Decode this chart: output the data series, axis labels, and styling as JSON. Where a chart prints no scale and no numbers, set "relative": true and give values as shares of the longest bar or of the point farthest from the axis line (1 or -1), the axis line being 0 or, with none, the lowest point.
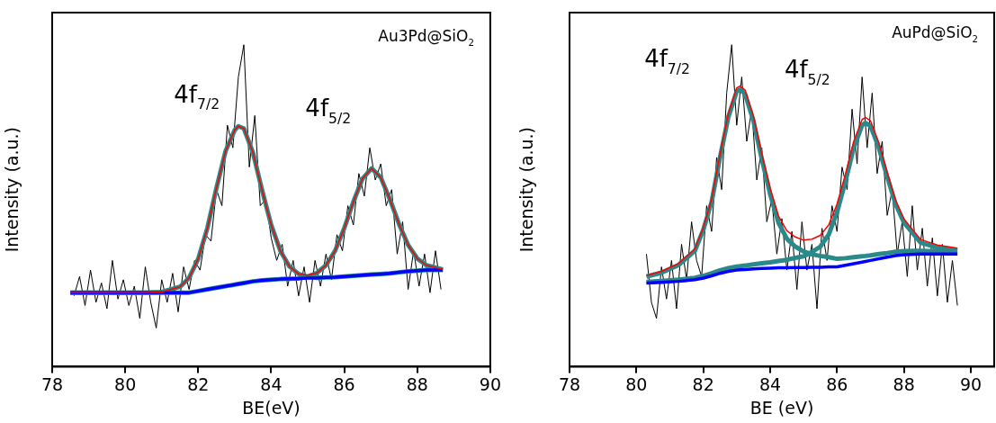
{
  "chart_data": [
    {
      "type": "line",
      "relative": true,
      "xlabel": "BE(eV)",
      "ylabel": "Intensity (a.u.)",
      "xlim": [
        78,
        90
      ],
      "xticks": [
        78,
        80,
        82,
        84,
        86,
        88,
        90
      ],
      "legend": false,
      "grid": false,
      "annotations": [
        "Au3Pd@SiO$_{2}$",
        "4f$_{7/2}$",
        "4f$_{5/2}$"
      ],
      "series": [
        {
          "color": "#000000",
          "x": [
            78.6,
            78.75,
            78.9,
            79.05,
            79.2,
            79.35,
            79.5,
            79.65,
            79.8,
            79.95,
            80.1,
            80.25,
            80.4,
            80.55,
            80.7,
            80.85,
            81.0,
            81.15,
            81.3,
            81.45,
            81.6,
            81.75,
            81.9,
            82.05,
            82.2,
            82.35,
            82.5,
            82.65,
            82.8,
            82.95,
            83.1,
            83.25,
            83.4,
            83.55,
            83.7,
            83.85,
            84.0,
            84.15,
            84.3,
            84.45,
            84.6,
            84.75,
            84.9,
            85.05,
            85.2,
            85.35,
            85.5,
            85.65,
            85.8,
            85.95,
            86.1,
            86.25,
            86.4,
            86.55,
            86.7,
            86.85,
            87.0,
            87.15,
            87.3,
            87.45,
            87.6,
            87.75,
            87.9,
            88.05,
            88.2,
            88.35,
            88.5,
            88.65
          ],
          "values": [
            0.22,
            0.28,
            0.19,
            0.3,
            0.2,
            0.26,
            0.18,
            0.33,
            0.21,
            0.27,
            0.19,
            0.25,
            0.15,
            0.31,
            0.2,
            0.12,
            0.27,
            0.2,
            0.29,
            0.17,
            0.31,
            0.24,
            0.33,
            0.3,
            0.41,
            0.39,
            0.55,
            0.5,
            0.75,
            0.68,
            0.9,
            1.0,
            0.62,
            0.78,
            0.5,
            0.52,
            0.4,
            0.33,
            0.38,
            0.25,
            0.33,
            0.22,
            0.31,
            0.2,
            0.33,
            0.25,
            0.35,
            0.27,
            0.41,
            0.36,
            0.5,
            0.44,
            0.6,
            0.53,
            0.68,
            0.58,
            0.63,
            0.5,
            0.55,
            0.35,
            0.45,
            0.24,
            0.36,
            0.25,
            0.35,
            0.23,
            0.36,
            0.24
          ]
        },
        {
          "color": "#0000ff",
          "x": [
            78.5,
            79,
            79.5,
            80,
            80.5,
            81,
            81.5,
            81.75,
            82,
            82.25,
            82.5,
            82.75,
            83,
            83.1,
            83.25,
            83.5,
            83.75,
            84,
            84.25,
            84.5,
            84.75,
            85,
            85.25,
            85.5,
            85.75,
            86,
            86.25,
            86.5,
            86.75,
            87,
            87.25,
            87.5,
            87.75,
            88,
            88.25,
            88.7
          ],
          "values": [
            0.23,
            0.23,
            0.23,
            0.23,
            0.23,
            0.23,
            0.23,
            0.23,
            0.235,
            0.24,
            0.245,
            0.25,
            0.255,
            0.257,
            0.26,
            0.265,
            0.268,
            0.27,
            0.272,
            0.273,
            0.274,
            0.275,
            0.276,
            0.277,
            0.278,
            0.28,
            0.282,
            0.284,
            0.286,
            0.288,
            0.29,
            0.293,
            0.296,
            0.298,
            0.3,
            0.3
          ]
        },
        {
          "color": "#ff0000",
          "x": [
            78.5,
            79,
            79.5,
            80,
            80.5,
            81,
            81.5,
            81.75,
            82,
            82.25,
            82.5,
            82.75,
            83,
            83.1,
            83.25,
            83.5,
            83.75,
            84,
            84.25,
            84.5,
            84.75,
            85,
            85.25,
            85.5,
            85.75,
            86,
            86.25,
            86.5,
            86.75,
            87,
            87.25,
            87.5,
            87.75,
            88,
            88.25,
            88.7
          ],
          "values": [
            0.23,
            0.23,
            0.23,
            0.23,
            0.23,
            0.232,
            0.248,
            0.276,
            0.335,
            0.43,
            0.555,
            0.67,
            0.735,
            0.747,
            0.74,
            0.665,
            0.548,
            0.44,
            0.36,
            0.311,
            0.288,
            0.284,
            0.291,
            0.315,
            0.36,
            0.43,
            0.512,
            0.584,
            0.616,
            0.588,
            0.52,
            0.443,
            0.378,
            0.336,
            0.315,
            0.302
          ]
        },
        {
          "color": "#2a8a8a",
          "x": [
            78.5,
            79,
            79.5,
            80,
            80.5,
            81,
            81.5,
            81.75,
            82,
            82.25,
            82.5,
            82.75,
            83,
            83.1,
            83.25,
            83.5,
            83.75,
            84,
            84.25,
            84.5,
            84.75,
            85,
            85.25,
            85.5,
            85.75,
            86,
            86.25,
            86.5,
            86.75,
            87,
            87.25,
            87.5,
            87.75,
            88,
            88.25,
            88.7
          ],
          "values": [
            0.23,
            0.23,
            0.23,
            0.23,
            0.23,
            0.232,
            0.248,
            0.276,
            0.335,
            0.43,
            0.555,
            0.67,
            0.735,
            0.747,
            0.74,
            0.665,
            0.548,
            0.44,
            0.36,
            0.311,
            0.288,
            0.279,
            0.276,
            0.277,
            0.278,
            0.28,
            0.282,
            0.284,
            0.286,
            0.288,
            0.29,
            0.293,
            0.296,
            0.298,
            0.3,
            0.3
          ]
        },
        {
          "color": "#2a8a8a",
          "x": [
            78.5,
            79,
            79.5,
            80,
            80.5,
            81,
            81.5,
            81.75,
            82,
            82.25,
            82.5,
            82.75,
            83,
            83.1,
            83.25,
            83.5,
            83.75,
            84,
            84.25,
            84.5,
            84.75,
            85,
            85.25,
            85.5,
            85.75,
            86,
            86.25,
            86.5,
            86.75,
            87,
            87.25,
            87.5,
            87.75,
            88,
            88.25,
            88.7
          ],
          "values": [
            0.23,
            0.23,
            0.23,
            0.23,
            0.23,
            0.23,
            0.23,
            0.23,
            0.235,
            0.24,
            0.245,
            0.25,
            0.255,
            0.257,
            0.26,
            0.265,
            0.268,
            0.27,
            0.272,
            0.273,
            0.274,
            0.28,
            0.291,
            0.315,
            0.36,
            0.43,
            0.512,
            0.584,
            0.616,
            0.588,
            0.52,
            0.443,
            0.378,
            0.336,
            0.315,
            0.302
          ]
        }
      ]
    },
    {
      "type": "line",
      "relative": true,
      "xlabel": "BE (eV)",
      "ylabel": "Intensity (a.u.)",
      "xlim": [
        78,
        90.7
      ],
      "xticks": [
        78,
        80,
        82,
        84,
        86,
        88,
        90
      ],
      "legend": false,
      "grid": false,
      "annotations": [
        "AuPd@SiO$_{2}$",
        "4f$_{7/2}$",
        "4f$_{5/2}$"
      ],
      "series": [
        {
          "color": "#000000",
          "x": [
            80.3,
            80.45,
            80.6,
            80.75,
            80.9,
            81.05,
            81.2,
            81.35,
            81.5,
            81.65,
            81.8,
            81.95,
            82.1,
            82.25,
            82.4,
            82.55,
            82.7,
            82.85,
            83.0,
            83.15,
            83.3,
            83.45,
            83.6,
            83.75,
            83.9,
            84.05,
            84.2,
            84.35,
            84.5,
            84.65,
            84.8,
            84.95,
            85.1,
            85.25,
            85.4,
            85.55,
            85.7,
            85.85,
            86.0,
            86.15,
            86.3,
            86.45,
            86.6,
            86.75,
            86.9,
            87.05,
            87.2,
            87.35,
            87.5,
            87.65,
            87.8,
            87.95,
            88.1,
            88.25,
            88.4,
            88.55,
            88.7,
            88.85,
            89.0,
            89.15,
            89.3,
            89.45,
            89.6
          ],
          "values": [
            0.35,
            0.2,
            0.15,
            0.31,
            0.21,
            0.33,
            0.18,
            0.38,
            0.27,
            0.45,
            0.33,
            0.28,
            0.5,
            0.42,
            0.65,
            0.55,
            0.85,
            1.0,
            0.75,
            0.9,
            0.7,
            0.8,
            0.58,
            0.68,
            0.45,
            0.52,
            0.35,
            0.46,
            0.3,
            0.42,
            0.24,
            0.45,
            0.3,
            0.38,
            0.18,
            0.43,
            0.33,
            0.5,
            0.42,
            0.62,
            0.55,
            0.8,
            0.63,
            0.9,
            0.68,
            0.85,
            0.6,
            0.7,
            0.47,
            0.55,
            0.35,
            0.45,
            0.28,
            0.5,
            0.3,
            0.43,
            0.25,
            0.4,
            0.22,
            0.38,
            0.2,
            0.33,
            0.19
          ]
        },
        {
          "color": "#0000ff",
          "x": [
            80.3,
            80.75,
            81.25,
            81.75,
            82,
            82.25,
            82.5,
            82.75,
            83,
            83.1,
            83.25,
            83.5,
            83.75,
            84,
            84.25,
            84.5,
            84.75,
            85,
            85.25,
            85.5,
            85.75,
            86,
            86.25,
            86.5,
            86.75,
            86.85,
            87,
            87.25,
            87.5,
            87.75,
            88,
            88.5,
            89,
            89.6
          ],
          "values": [
            0.26,
            0.262,
            0.265,
            0.27,
            0.275,
            0.282,
            0.29,
            0.296,
            0.3,
            0.301,
            0.302,
            0.304,
            0.305,
            0.306,
            0.307,
            0.307,
            0.308,
            0.308,
            0.309,
            0.309,
            0.31,
            0.31,
            0.315,
            0.32,
            0.325,
            0.327,
            0.33,
            0.335,
            0.34,
            0.345,
            0.348,
            0.35,
            0.35,
            0.35
          ]
        },
        {
          "color": "#ff0000",
          "x": [
            80.3,
            80.75,
            81.25,
            81.75,
            82,
            82.25,
            82.5,
            82.75,
            83,
            83.1,
            83.25,
            83.5,
            83.75,
            84,
            84.25,
            84.5,
            84.75,
            85,
            85.25,
            85.5,
            85.75,
            86,
            86.25,
            86.5,
            86.75,
            86.85,
            87,
            87.25,
            87.5,
            87.75,
            88,
            88.5,
            89,
            89.6
          ],
          "values": [
            0.283,
            0.296,
            0.32,
            0.366,
            0.432,
            0.52,
            0.659,
            0.786,
            0.866,
            0.872,
            0.859,
            0.778,
            0.661,
            0.554,
            0.468,
            0.422,
            0.403,
            0.393,
            0.396,
            0.408,
            0.44,
            0.505,
            0.597,
            0.7,
            0.768,
            0.774,
            0.764,
            0.695,
            0.603,
            0.517,
            0.459,
            0.395,
            0.378,
            0.368
          ]
        },
        {
          "color": "#2a8a8a",
          "x": [
            80.3,
            80.75,
            81.25,
            81.75,
            82,
            82.25,
            82.5,
            82.75,
            83,
            83.1,
            83.25,
            83.5,
            83.75,
            84,
            84.25,
            84.5,
            84.75,
            85,
            85.25,
            85.5,
            85.75,
            86,
            86.25,
            86.5,
            86.75,
            86.85,
            87,
            87.25,
            87.5,
            87.75,
            88,
            88.5,
            89,
            89.6
          ],
          "values": [
            0.28,
            0.292,
            0.315,
            0.36,
            0.425,
            0.512,
            0.65,
            0.776,
            0.855,
            0.861,
            0.847,
            0.764,
            0.645,
            0.536,
            0.447,
            0.397,
            0.373,
            0.358,
            0.349,
            0.344,
            0.34,
            0.335,
            0.337,
            0.34,
            0.343,
            0.344,
            0.346,
            0.35,
            0.353,
            0.357,
            0.359,
            0.36,
            0.358,
            0.356
          ]
        },
        {
          "color": "#2a8a8a",
          "x": [
            80.3,
            80.75,
            81.25,
            81.75,
            82,
            82.25,
            82.5,
            82.75,
            83,
            83.1,
            83.25,
            83.5,
            83.75,
            84,
            84.25,
            84.5,
            84.75,
            85,
            85.25,
            85.5,
            85.75,
            86,
            86.25,
            86.5,
            86.75,
            86.85,
            87,
            87.25,
            87.5,
            87.75,
            88,
            88.5,
            89,
            89.6
          ],
          "values": [
            0.263,
            0.266,
            0.27,
            0.276,
            0.282,
            0.29,
            0.299,
            0.306,
            0.311,
            0.312,
            0.314,
            0.318,
            0.321,
            0.324,
            0.328,
            0.332,
            0.338,
            0.343,
            0.356,
            0.373,
            0.41,
            0.48,
            0.575,
            0.68,
            0.75,
            0.757,
            0.748,
            0.68,
            0.59,
            0.505,
            0.448,
            0.385,
            0.37,
            0.362
          ]
        }
      ]
    }
  ]
}
